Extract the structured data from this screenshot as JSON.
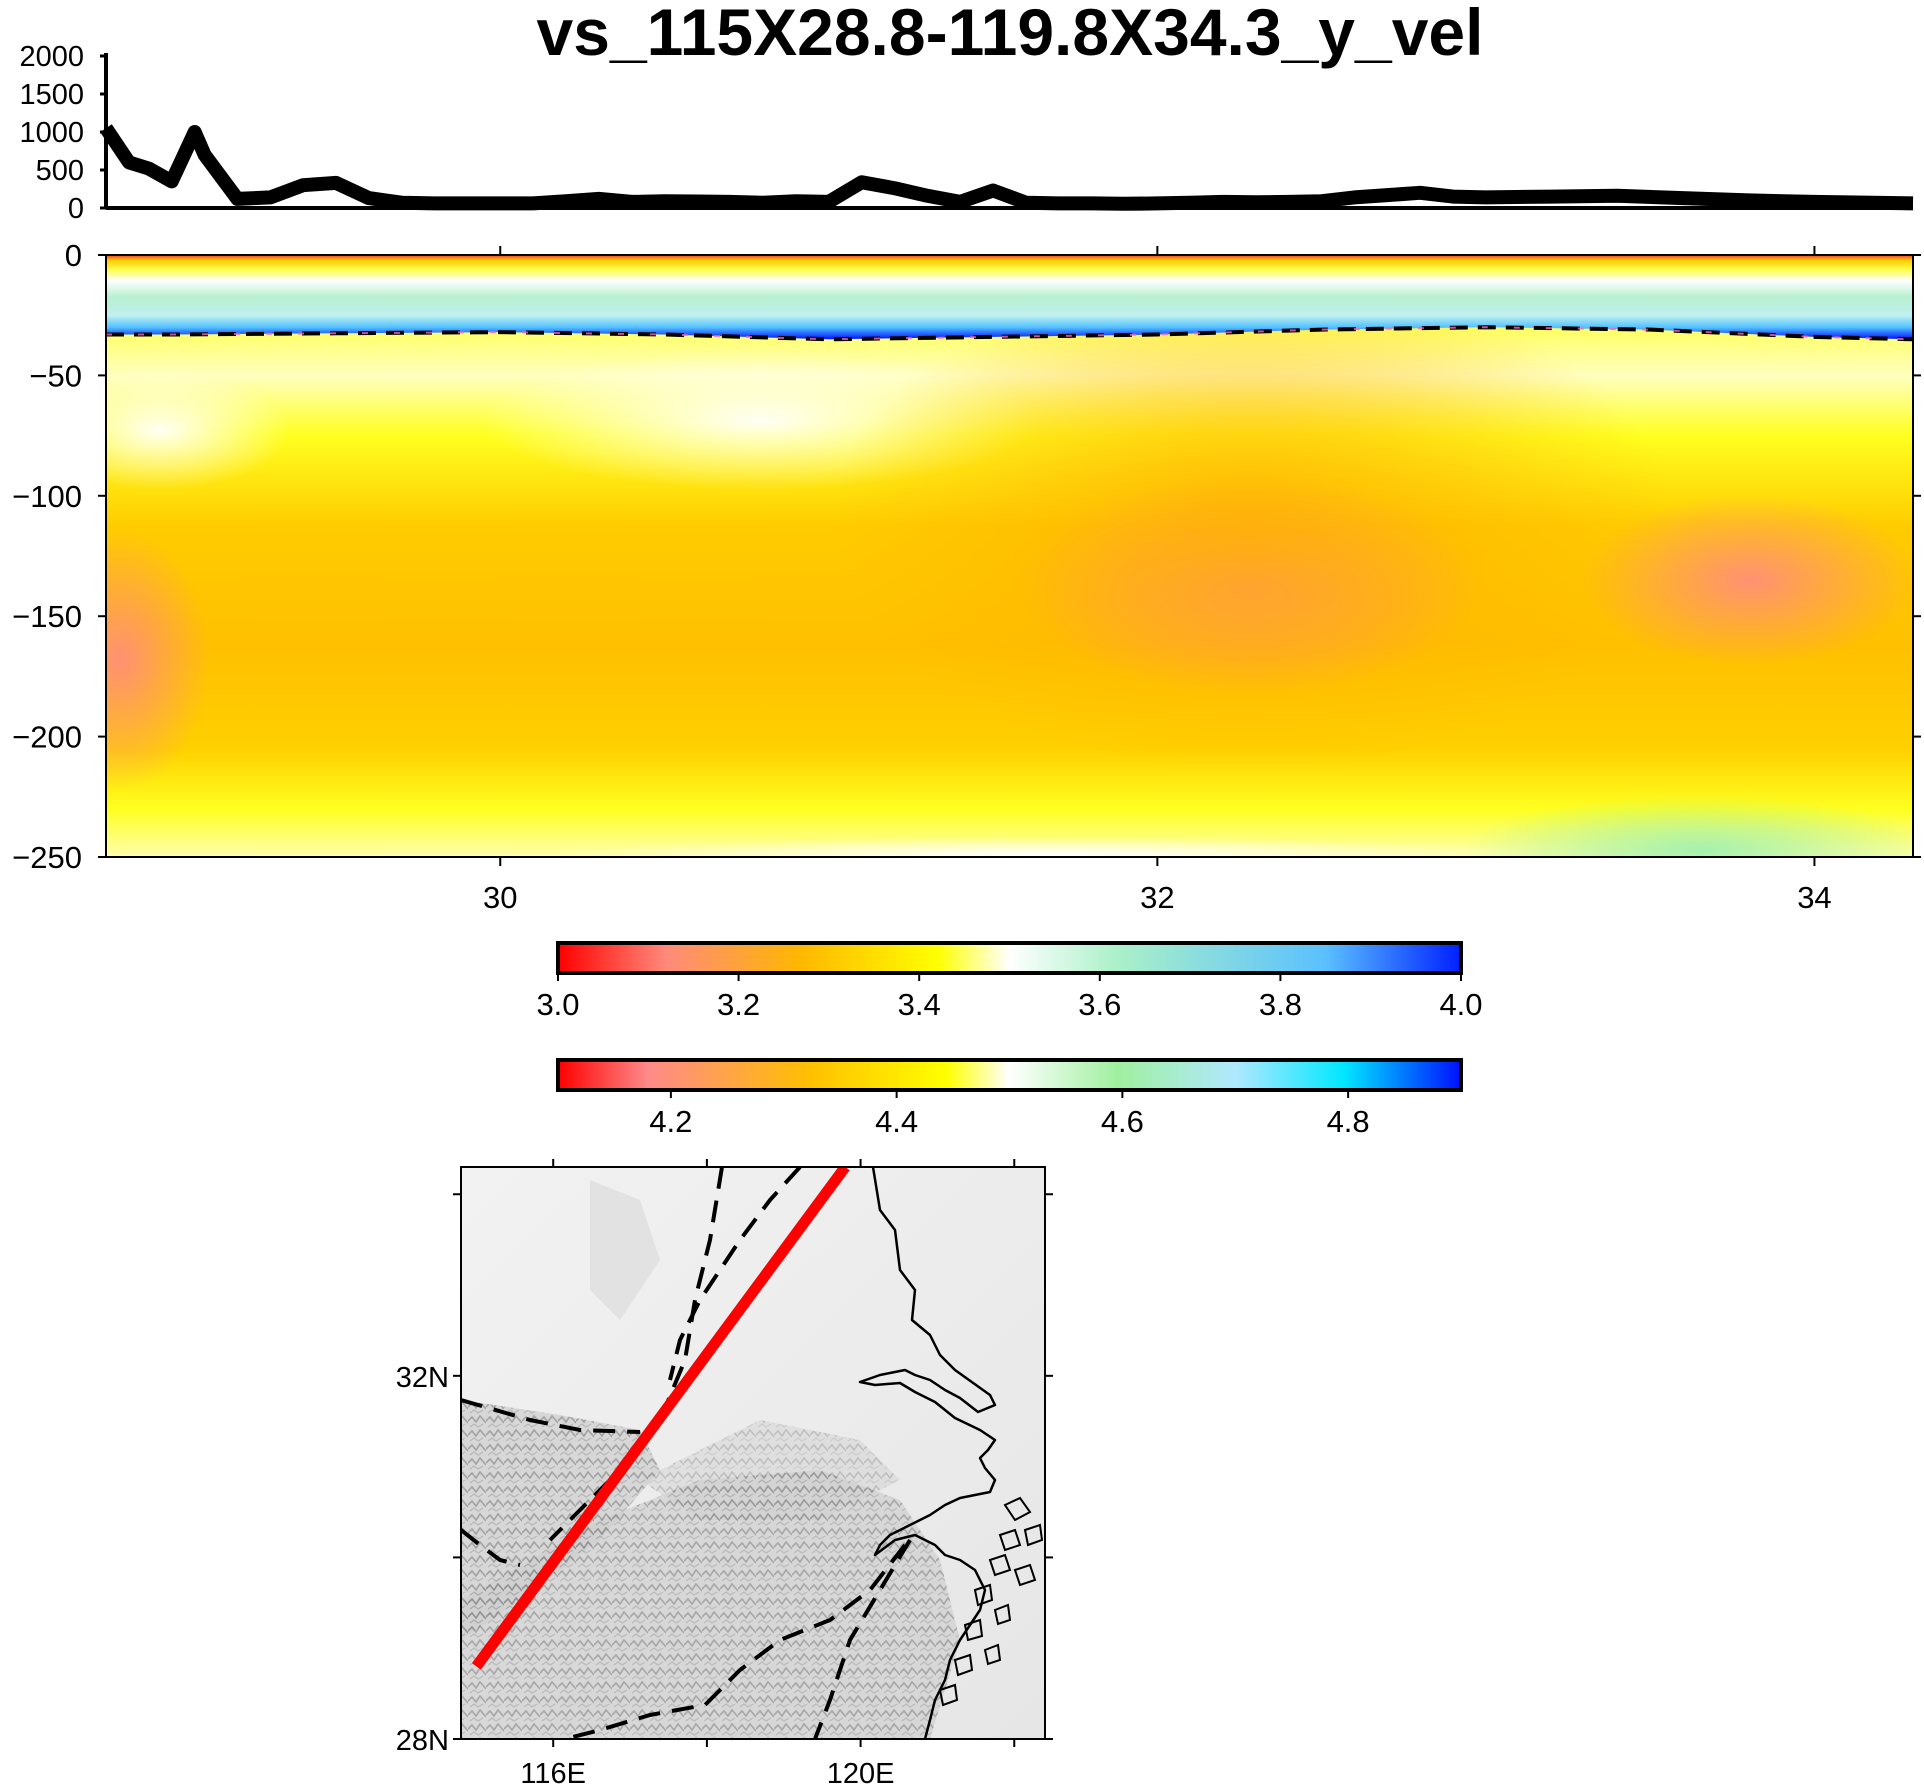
{
  "title": "vs_115X28.8-119.8X34.3_y_vel",
  "chart_data": [
    {
      "type": "line",
      "panel": "topography-profile",
      "x": [
        28.8,
        28.87,
        28.93,
        29.0,
        29.07,
        29.1,
        29.2,
        29.3,
        29.4,
        29.5,
        29.6,
        29.7,
        29.8,
        29.9,
        30.0,
        30.1,
        30.2,
        30.3,
        30.4,
        30.5,
        30.6,
        30.7,
        30.8,
        30.9,
        31.0,
        31.1,
        31.2,
        31.3,
        31.4,
        31.5,
        31.6,
        31.7,
        31.8,
        31.9,
        32.0,
        32.1,
        32.2,
        32.3,
        32.4,
        32.5,
        32.6,
        32.7,
        32.8,
        32.9,
        33.0,
        33.2,
        33.4,
        33.6,
        33.8,
        34.0,
        34.3
      ],
      "values": [
        1050,
        600,
        520,
        350,
        1000,
        700,
        120,
        140,
        300,
        330,
        130,
        70,
        60,
        60,
        60,
        60,
        90,
        120,
        80,
        90,
        85,
        80,
        70,
        90,
        80,
        340,
        260,
        160,
        80,
        230,
        70,
        60,
        60,
        55,
        60,
        70,
        80,
        75,
        80,
        90,
        140,
        170,
        200,
        150,
        140,
        150,
        160,
        130,
        100,
        80,
        60
      ],
      "ylim": [
        0,
        2000
      ],
      "xlim": [
        28.8,
        34.3
      ],
      "yticks": [
        "0",
        "500",
        "1000",
        "1500",
        "2000"
      ]
    },
    {
      "type": "heatmap",
      "panel": "vs-cross-section",
      "xlim": [
        28.8,
        34.3
      ],
      "ylim": [
        -250,
        0
      ],
      "xticks": [
        "30",
        "32",
        "34"
      ],
      "yticks": [
        "0",
        "−50",
        "−100",
        "−150",
        "−200",
        "−250"
      ],
      "moho_x": [
        28.8,
        29.0,
        29.5,
        30.0,
        30.5,
        31.0,
        31.5,
        32.0,
        32.5,
        33.0,
        33.5,
        34.0,
        34.3
      ],
      "moho_depth": [
        -33,
        -33,
        -32.5,
        -32,
        -33,
        -35,
        -34,
        -33,
        -31,
        -30,
        -31,
        -34,
        -35
      ]
    },
    {
      "type": "colorbar",
      "panel": "crust-colorbar",
      "range": [
        3.0,
        4.0
      ],
      "ticks": [
        "3.0",
        "3.2",
        "3.4",
        "3.6",
        "3.8",
        "4.0"
      ],
      "stops": [
        "#ff0000",
        "#ff8a7a",
        "#ffb800",
        "#ffff00",
        "#ffffff",
        "#aaf0c8",
        "#5ac0ff",
        "#0020ff"
      ]
    },
    {
      "type": "colorbar",
      "panel": "mantle-colorbar",
      "range": [
        4.1,
        4.9
      ],
      "ticks": [
        "4.2",
        "4.4",
        "4.6",
        "4.8"
      ],
      "stops": [
        "#ff0000",
        "#ff8a8a",
        "#ffc000",
        "#ffff00",
        "#ffffff",
        "#a0f0a0",
        "#b0e8ff",
        "#00e8ff",
        "#0010ff"
      ]
    },
    {
      "type": "map",
      "panel": "location-map",
      "xlim": [
        114.8,
        122.4
      ],
      "ylim": [
        28.0,
        34.3
      ],
      "xticks": [
        "116E",
        "120E"
      ],
      "yticks": [
        "32N",
        "28N"
      ],
      "profile_line": {
        "start": [
          115.0,
          28.8
        ],
        "end": [
          119.8,
          34.3
        ]
      }
    }
  ],
  "colors": {
    "profile_line": "#ff0000",
    "fault_lines": "#000000",
    "coastline": "#000000",
    "topo_line": "#000000"
  }
}
